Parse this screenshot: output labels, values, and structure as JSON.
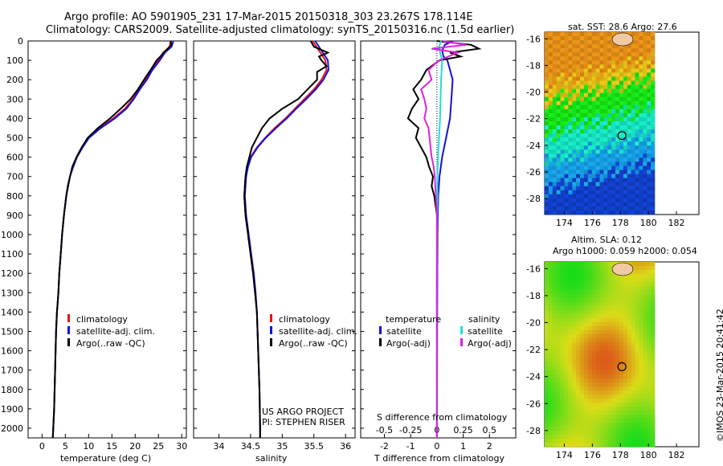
{
  "header": {
    "line1": "Argo profile: AO 5901905_231 17-Mar-2015 20150318_303 23.267S 178.114E",
    "line2": "Climatology: CARS2009. Satellite-adjusted climatology: synTS_20150316.nc (1.5d earlier)"
  },
  "credits": {
    "project": "US ARGO PROJECT",
    "pi": "PI: STEPHEN RISER",
    "imos": "©IMOS 23-Mar-2015 20:41:42"
  },
  "colors": {
    "climatology": "#ee1111",
    "satellite": "#1111dd",
    "argo": "#000000",
    "sal_satellite": "#22dddd",
    "sal_argo": "#dd22dd"
  },
  "legend_profiles": [
    "climatology",
    "satellite-adj. clim.",
    "Argo(..raw -QC)"
  ],
  "legend_diff": {
    "temp_header": "temperature",
    "sal_header": "salinity",
    "satellite": "satellite",
    "argo": "Argo(-adj)"
  },
  "sst_title": "sat. SST: 28.6 Argo: 27.6",
  "sla_title1": "Altim. SLA: 0.12",
  "sla_title2": "Argo h1000: 0.059 h2000: 0.054",
  "chart_data": [
    {
      "type": "line",
      "xlabel": "temperature (deg C)",
      "ylabel": "",
      "xlim": [
        -3,
        31
      ],
      "ylim": [
        2050,
        0
      ],
      "xticks": [
        0,
        5,
        10,
        15,
        20,
        25,
        30
      ],
      "yticks": [
        0,
        100,
        200,
        300,
        400,
        500,
        600,
        700,
        800,
        900,
        1000,
        1100,
        1200,
        1300,
        1400,
        1500,
        1600,
        1700,
        1800,
        1900,
        2000
      ],
      "series": [
        {
          "name": "climatology",
          "depth": [
            0,
            30,
            60,
            100,
            150,
            200,
            250,
            300,
            350,
            400,
            450,
            500,
            550,
            600,
            650,
            700,
            750,
            800,
            900,
            1000,
            1100,
            1200,
            1300,
            1400,
            1500,
            1600,
            1700,
            1800,
            1900,
            2000,
            2050
          ],
          "values": [
            27.6,
            27.4,
            26.0,
            25.0,
            23.4,
            22.2,
            20.8,
            19.5,
            17.8,
            15.3,
            12.4,
            10.0,
            8.6,
            7.4,
            6.6,
            6.0,
            5.6,
            5.2,
            4.7,
            4.3,
            4.0,
            3.7,
            3.5,
            3.2,
            3.0,
            2.9,
            2.8,
            2.7,
            2.6,
            2.4,
            2.3
          ]
        },
        {
          "name": "satellite-adj. clim.",
          "depth": [
            0,
            30,
            60,
            100,
            150,
            200,
            250,
            300,
            350,
            400,
            450,
            500,
            550,
            600,
            650,
            700,
            750,
            800,
            900,
            1000,
            1100,
            1200,
            1300,
            1400,
            1500,
            1600,
            1700,
            1800,
            1900,
            2000,
            2050
          ],
          "values": [
            28.2,
            27.8,
            26.4,
            25.3,
            23.7,
            22.5,
            21.0,
            19.7,
            18.1,
            15.6,
            12.6,
            10.1,
            8.7,
            7.5,
            6.7,
            6.0,
            5.6,
            5.2,
            4.7,
            4.3,
            4.0,
            3.7,
            3.5,
            3.2,
            3.0,
            2.9,
            2.8,
            2.7,
            2.6,
            2.4,
            2.3
          ]
        },
        {
          "name": "Argo(..raw -QC)",
          "depth": [
            0,
            20,
            40,
            60,
            80,
            100,
            150,
            200,
            250,
            300,
            350,
            400,
            450,
            500,
            550,
            600,
            650,
            700,
            750,
            800,
            900,
            1000,
            1100,
            1200,
            1300,
            1400,
            1500,
            1600,
            1700,
            1800,
            1900,
            2000,
            2050
          ],
          "values": [
            27.6,
            27.8,
            27.0,
            26.2,
            25.4,
            24.6,
            23.3,
            21.9,
            20.6,
            19.0,
            16.9,
            14.6,
            12.0,
            9.8,
            8.5,
            7.4,
            6.5,
            6.0,
            5.5,
            5.2,
            4.7,
            4.3,
            4.0,
            3.7,
            3.5,
            3.2,
            3.0,
            2.9,
            2.8,
            2.7,
            2.6,
            2.4,
            2.3
          ]
        }
      ]
    },
    {
      "type": "line",
      "xlabel": "salinity",
      "ylabel": "",
      "xlim": [
        33.6,
        36.15
      ],
      "ylim": [
        2050,
        0
      ],
      "xticks": [
        34,
        34.5,
        35,
        35.5,
        36
      ],
      "series": [
        {
          "name": "climatology",
          "depth": [
            0,
            50,
            100,
            150,
            200,
            250,
            300,
            350,
            400,
            450,
            500,
            550,
            600,
            650,
            700,
            750,
            800,
            900,
            1000,
            1100,
            1200,
            1300,
            1400,
            1500,
            1600,
            1700,
            1800,
            1900,
            2000,
            2050
          ],
          "values": [
            35.48,
            35.58,
            35.68,
            35.7,
            35.62,
            35.5,
            35.35,
            35.2,
            35.05,
            34.88,
            34.73,
            34.6,
            34.5,
            34.45,
            34.42,
            34.41,
            34.4,
            34.42,
            34.46,
            34.5,
            34.54,
            34.57,
            34.6,
            34.61,
            34.62,
            34.63,
            34.64,
            34.645,
            34.65,
            34.65
          ]
        },
        {
          "name": "satellite-adj. clim.",
          "depth": [
            0,
            50,
            100,
            150,
            200,
            250,
            300,
            350,
            400,
            450,
            500,
            550,
            600,
            650,
            700,
            750,
            800,
            900,
            1000,
            1100,
            1200,
            1300,
            1400,
            1500,
            1600,
            1700,
            1800,
            1900,
            2000,
            2050
          ],
          "values": [
            35.52,
            35.62,
            35.72,
            35.73,
            35.65,
            35.53,
            35.38,
            35.22,
            35.07,
            34.9,
            34.74,
            34.61,
            34.51,
            34.46,
            34.43,
            34.42,
            34.41,
            34.43,
            34.47,
            34.51,
            34.55,
            34.58,
            34.6,
            34.61,
            34.62,
            34.63,
            34.64,
            34.645,
            34.65,
            34.65
          ]
        },
        {
          "name": "Argo(..raw -QC)",
          "depth": [
            0,
            30,
            60,
            80,
            100,
            130,
            160,
            200,
            250,
            300,
            350,
            400,
            450,
            500,
            550,
            600,
            650,
            700,
            750,
            800,
            900,
            1000,
            1100,
            1200,
            1300,
            1400,
            1500,
            1600,
            1700,
            1800,
            1900,
            2000,
            2050
          ],
          "values": [
            35.45,
            35.5,
            35.72,
            35.58,
            35.62,
            35.7,
            35.55,
            35.55,
            35.4,
            35.25,
            35.0,
            34.8,
            34.68,
            34.6,
            34.52,
            34.48,
            34.44,
            34.42,
            34.41,
            34.4,
            34.42,
            34.46,
            34.5,
            34.54,
            34.57,
            34.6,
            34.61,
            34.62,
            34.63,
            34.64,
            34.645,
            34.65,
            34.65
          ]
        }
      ]
    },
    {
      "type": "line",
      "xlabel": "T difference from climatology",
      "x2label": "S difference from climatology",
      "xlim": [
        -2.9,
        3.0
      ],
      "x2lim": [
        -0.725,
        0.75
      ],
      "ylim": [
        2050,
        0
      ],
      "xticks": [
        -2,
        -1,
        0,
        1,
        2
      ],
      "x2ticks": [
        -0.5,
        -0.25,
        0,
        0.25,
        0.5
      ],
      "x2ticklabels": [
        "-0.5",
        "-0.25",
        "0",
        "0.25",
        "0.5"
      ],
      "series": [
        {
          "name": "temperature satellite",
          "axis": "T",
          "depth": [
            0,
            20,
            50,
            80,
            100,
            150,
            200,
            300,
            400,
            500,
            600,
            700,
            800,
            1000,
            1500,
            2000,
            2050
          ],
          "values": [
            0.6,
            0.3,
            0.2,
            0.25,
            0.4,
            0.5,
            0.6,
            0.55,
            0.5,
            0.35,
            0.2,
            0.1,
            0.05,
            0.02,
            0.01,
            0.0,
            0.0
          ]
        },
        {
          "name": "temperature Argo(-adj)",
          "axis": "T",
          "depth": [
            0,
            20,
            40,
            60,
            80,
            100,
            150,
            200,
            250,
            300,
            350,
            400,
            450,
            500,
            550,
            600,
            650,
            700,
            750,
            800,
            900,
            1000,
            1200,
            1500,
            2000,
            2050
          ],
          "values": [
            0.0,
            1.3,
            1.6,
            0.5,
            0.9,
            0.1,
            -0.4,
            -0.6,
            -0.9,
            -0.7,
            -0.95,
            -1.1,
            -0.7,
            -0.8,
            -0.6,
            -0.4,
            -0.3,
            -0.15,
            -0.2,
            -0.1,
            0.0,
            0.02,
            0.0,
            0.0,
            0.0,
            0.0
          ]
        },
        {
          "name": "salinity satellite",
          "axis": "S",
          "depth": [
            0,
            30,
            60,
            100,
            200,
            300,
            400,
            500,
            600,
            700,
            800,
            1000,
            1500,
            2000,
            2050
          ],
          "values": [
            0.04,
            0.02,
            0.03,
            0.05,
            0.04,
            0.035,
            0.03,
            0.02,
            0.01,
            0.005,
            0.005,
            0.0,
            0.0,
            0.0,
            0.0
          ]
        },
        {
          "name": "salinity Argo(-adj)",
          "axis": "S",
          "depth": [
            0,
            20,
            40,
            60,
            100,
            150,
            200,
            250,
            300,
            350,
            400,
            450,
            500,
            550,
            600,
            650,
            700,
            800,
            900,
            1000,
            1500,
            2000,
            2050
          ],
          "values": [
            0.05,
            0.28,
            -0.05,
            0.2,
            0.02,
            -0.08,
            -0.05,
            -0.15,
            -0.12,
            -0.1,
            -0.12,
            -0.08,
            -0.07,
            -0.06,
            -0.05,
            -0.03,
            -0.02,
            -0.01,
            0.0,
            0.0,
            0.0,
            0.0,
            0.0
          ]
        }
      ]
    },
    {
      "type": "heatmap",
      "title": "sat. SST: 28.6 Argo: 27.6",
      "xticks": [
        174,
        176,
        178,
        180,
        182
      ],
      "yticks": [
        -16,
        -18,
        -20,
        -22,
        -24,
        -26,
        -28
      ],
      "argo_position": {
        "lon": 178.114,
        "lat": -23.267
      }
    },
    {
      "type": "heatmap",
      "title": "Altim. SLA: 0.12",
      "xticks": [
        174,
        176,
        178,
        180,
        182
      ],
      "yticks": [
        -16,
        -18,
        -20,
        -22,
        -24,
        -26,
        -28
      ],
      "argo_position": {
        "lon": 178.114,
        "lat": -23.267
      }
    }
  ]
}
